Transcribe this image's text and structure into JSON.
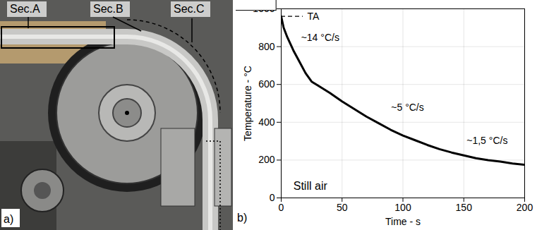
{
  "panel_a": {
    "label": "a)",
    "section_labels": [
      "Sec.A",
      "Sec.B",
      "Sec.C"
    ]
  },
  "chart_data": {
    "type": "line",
    "panel_label": "b)",
    "x_label": "Time - s",
    "y_label": "Temperature - °C",
    "x": [
      0,
      2,
      5,
      10,
      15,
      20,
      25,
      30,
      40,
      50,
      60,
      70,
      80,
      90,
      100,
      110,
      120,
      130,
      140,
      150,
      160,
      170,
      180,
      190,
      200
    ],
    "values": [
      960,
      900,
      850,
      780,
      720,
      660,
      615,
      595,
      555,
      510,
      470,
      430,
      395,
      360,
      330,
      305,
      280,
      258,
      240,
      225,
      210,
      200,
      192,
      182,
      175
    ],
    "color": "#000000",
    "xlim": [
      0,
      200
    ],
    "ylim": [
      0,
      1000
    ],
    "xticks": [
      0,
      50,
      100,
      150,
      200
    ],
    "yticks": [
      0,
      200,
      400,
      600,
      800,
      1000
    ],
    "grid": true,
    "reference_line": {
      "label": "TA",
      "y": 960,
      "x_from": 0,
      "x_to": 18,
      "line_style": "dashed"
    },
    "annotations": [
      {
        "text": "~14 °C/s",
        "x": 14,
        "y": 810
      },
      {
        "text": "~5 °C/s",
        "x": 88,
        "y": 440
      },
      {
        "text": "~1,5 °C/s",
        "x": 150,
        "y": 265
      }
    ],
    "box_label": {
      "text": "Still air",
      "x": 10,
      "y": 62
    }
  }
}
